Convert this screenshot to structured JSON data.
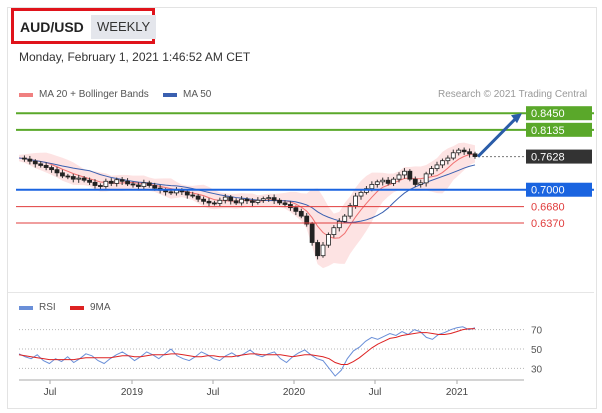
{
  "header": {
    "pair": "AUD/USD",
    "period": "WEEKLY",
    "date": "Monday, February 1, 2021 1:46:52 AM CET"
  },
  "legend": {
    "item1": "MA 20 + Bollinger Bands",
    "item2": "MA 50",
    "credit": "Research © 2021 Trading Central"
  },
  "rsi_legend": {
    "item1": "RSI",
    "item2": "9MA"
  },
  "colors": {
    "ma20": "#f07070",
    "band": "#fde0e0",
    "ma50": "#3a60b0",
    "green": "#5aa82a",
    "blue": "#1a64e0",
    "red": "#e03c3c",
    "arrow": "#2a5ca8",
    "rsi": "#6a8fd8",
    "rsi9": "#dd2222"
  },
  "chart_data": [
    {
      "type": "candlestick",
      "title": "AUD/USD",
      "ylim": [
        0.51,
        0.87
      ],
      "x_labels": [
        "Jul",
        "2019",
        "Jul",
        "2020",
        "Jul",
        "2021"
      ],
      "price_series": [
        0.76,
        0.758,
        0.754,
        0.749,
        0.746,
        0.742,
        0.738,
        0.732,
        0.726,
        0.725,
        0.72,
        0.722,
        0.718,
        0.714,
        0.708,
        0.706,
        0.716,
        0.712,
        0.719,
        0.716,
        0.711,
        0.709,
        0.706,
        0.713,
        0.708,
        0.703,
        0.699,
        0.696,
        0.694,
        0.699,
        0.696,
        0.69,
        0.688,
        0.682,
        0.678,
        0.675,
        0.674,
        0.68,
        0.686,
        0.679,
        0.675,
        0.682,
        0.679,
        0.676,
        0.68,
        0.683,
        0.685,
        0.68,
        0.675,
        0.672,
        0.666,
        0.659,
        0.65,
        0.635,
        0.6,
        0.575,
        0.595,
        0.615,
        0.628,
        0.64,
        0.65,
        0.67,
        0.688,
        0.695,
        0.702,
        0.71,
        0.715,
        0.718,
        0.712,
        0.72,
        0.728,
        0.735,
        0.72,
        0.71,
        0.713,
        0.73,
        0.74,
        0.747,
        0.755,
        0.76,
        0.77,
        0.775,
        0.772,
        0.768,
        0.7628
      ],
      "lines": [
        {
          "value": "0.8450",
          "color": "green"
        },
        {
          "value": "0.8135",
          "color": "green"
        },
        {
          "value": "0.7628",
          "color": "current"
        },
        {
          "value": "0.7000",
          "color": "blue"
        },
        {
          "value": "0.6680",
          "color": "red"
        },
        {
          "value": "0.6370",
          "color": "red"
        }
      ],
      "levels_numeric": [
        0.845,
        0.8135,
        0.7628,
        0.7,
        0.668,
        0.637
      ]
    },
    {
      "type": "line",
      "title": "RSI",
      "ylim": [
        20,
        80
      ],
      "y_ticks": [
        "70",
        "50",
        "30"
      ],
      "series": [
        {
          "name": "RSI",
          "values": [
            45,
            42,
            40,
            44,
            38,
            35,
            40,
            37,
            42,
            36,
            40,
            45,
            43,
            38,
            35,
            40,
            44,
            47,
            43,
            38,
            42,
            47,
            44,
            40,
            45,
            50,
            43,
            40,
            38,
            42,
            47,
            44,
            40,
            38,
            43,
            46,
            42,
            45,
            49,
            44,
            42,
            45,
            47,
            40,
            36,
            42,
            46,
            49,
            44,
            40,
            38,
            30,
            22,
            28,
            40,
            48,
            52,
            58,
            62,
            60,
            63,
            66,
            64,
            68,
            65,
            70,
            68,
            62,
            60,
            65,
            67,
            70,
            72,
            73,
            70,
            72
          ]
        },
        {
          "name": "9MA",
          "values": [
            44,
            43,
            42,
            41,
            40,
            39,
            39,
            39,
            39,
            39,
            40,
            41,
            41,
            41,
            41,
            41,
            42,
            43,
            43,
            42,
            42,
            43,
            44,
            44,
            44,
            45,
            45,
            44,
            43,
            42,
            42,
            43,
            43,
            42,
            42,
            42,
            43,
            44,
            45,
            45,
            44,
            44,
            44,
            44,
            43,
            42,
            43,
            44,
            44,
            43,
            42,
            40,
            36,
            34,
            34,
            37,
            41,
            46,
            51,
            55,
            58,
            61,
            62,
            64,
            65,
            66,
            67,
            67,
            66,
            65,
            65,
            66,
            68,
            70,
            71,
            71
          ]
        }
      ]
    }
  ]
}
